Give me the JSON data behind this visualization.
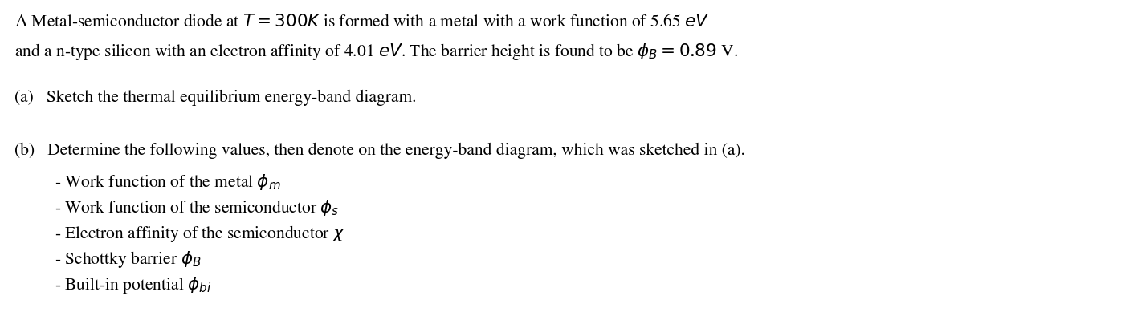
{
  "background_color": "#ffffff",
  "figsize": [
    13.96,
    3.94
  ],
  "dpi": 100,
  "fontsize": 15.5,
  "lines": [
    {
      "xpx": 18,
      "ypx": 18,
      "text": "A Metal-semiconductor diode at $T = 300K$ is formed with a metal with a work function of 5.65 $eV$"
    },
    {
      "xpx": 18,
      "ypx": 52,
      "text": "and a n-type silicon with an electron affinity of 4.01 $eV$. The barrier height is found to be $\\phi_B = 0.89$ V."
    },
    {
      "xpx": 18,
      "ypx": 112,
      "text": "(a)   Sketch the thermal equilibrium energy-band diagram."
    },
    {
      "xpx": 18,
      "ypx": 178,
      "text": "(b)   Determine the following values, then denote on the energy-band diagram, which was sketched in (a)."
    },
    {
      "xpx": 68,
      "ypx": 215,
      "text": "- Work function of the metal $\\phi_m$"
    },
    {
      "xpx": 68,
      "ypx": 247,
      "text": "- Work function of the semiconductor $\\phi_s$"
    },
    {
      "xpx": 68,
      "ypx": 279,
      "text": "- Electron affinity of the semiconductor $\\chi$"
    },
    {
      "xpx": 68,
      "ypx": 311,
      "text": "- Schottky barrier $\\phi_B$"
    },
    {
      "xpx": 68,
      "ypx": 343,
      "text": "- Built-in potential $\\phi_{bi}$"
    }
  ]
}
